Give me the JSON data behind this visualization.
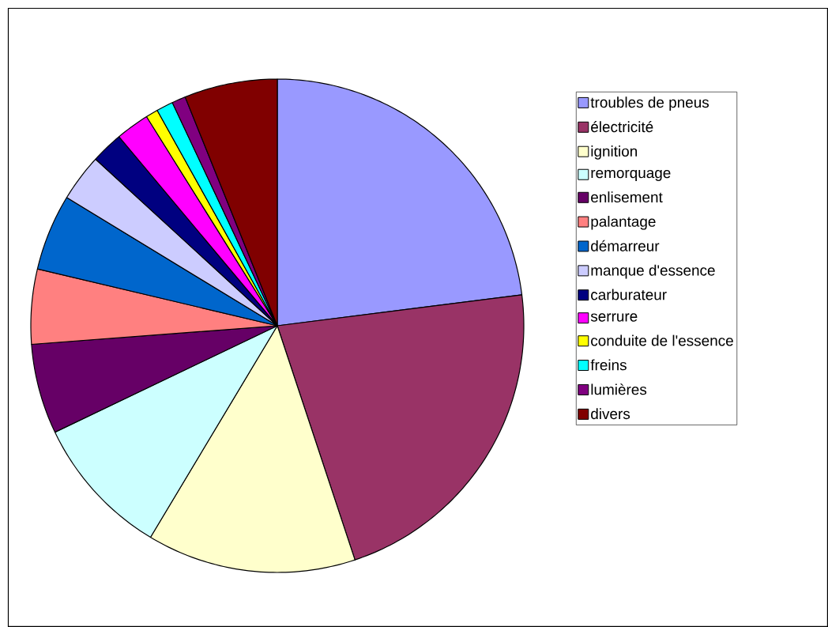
{
  "chart_data": {
    "type": "pie",
    "categories": [
      "troubles de pneus",
      "électricité",
      "ignition",
      "remorquage",
      "enlisement",
      "palantage",
      "démarreur",
      "manque d'essence",
      "carburateur",
      "serrure",
      "conduite de l'essence",
      "freins",
      "lumières",
      "divers"
    ],
    "values": [
      23.0,
      21.9,
      13.7,
      9.3,
      5.9,
      4.9,
      5.0,
      3.1,
      2.1,
      2.2,
      0.8,
      1.1,
      0.9,
      6.1
    ],
    "colors": [
      "#9999ff",
      "#993366",
      "#ffffcc",
      "#ccffff",
      "#660066",
      "#ff8080",
      "#0066cc",
      "#ccccff",
      "#000080",
      "#ff00ff",
      "#ffff00",
      "#00ffff",
      "#800080",
      "#800000"
    ],
    "legend": "right"
  }
}
